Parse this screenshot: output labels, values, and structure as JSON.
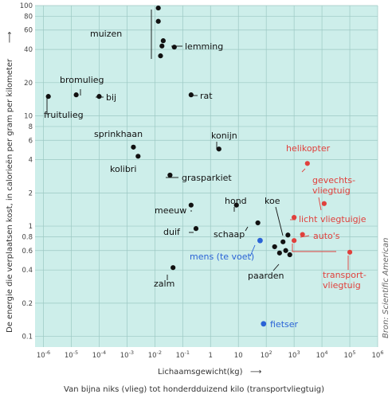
{
  "chart_data": {
    "type": "scatter",
    "x_scale": "log",
    "y_scale": "log",
    "xlim": [
      5e-07,
      1000000.0
    ],
    "ylim": [
      0.08,
      100
    ],
    "grid": true,
    "xlabel": "Lichaamsgewicht(kg)",
    "ylabel": "De energie die verplaatsen kost, in calorieën per gram per kilometer",
    "subtitle": "Van bijna niks (vlieg) tot honderdduizend kilo (transportvliegtuig)",
    "source": "Bron: Scientific American",
    "x_ticks": [
      {
        "v": 1e-06,
        "b": "10",
        "e": "-6"
      },
      {
        "v": 1e-05,
        "b": "10",
        "e": "-5"
      },
      {
        "v": 0.0001,
        "b": "10",
        "e": "-4"
      },
      {
        "v": 0.001,
        "b": "10",
        "e": "-3"
      },
      {
        "v": 0.01,
        "b": "10",
        "e": "-2"
      },
      {
        "v": 0.1,
        "b": "10",
        "e": "-1"
      },
      {
        "v": 1,
        "b": "1",
        "e": ""
      },
      {
        "v": 10,
        "b": "10",
        "e": ""
      },
      {
        "v": 100,
        "b": "10",
        "e": "2"
      },
      {
        "v": 1000,
        "b": "10",
        "e": "3"
      },
      {
        "v": 10000,
        "b": "10",
        "e": "4"
      },
      {
        "v": 100000,
        "b": "10",
        "e": "5"
      },
      {
        "v": 1000000,
        "b": "10",
        "e": "6"
      }
    ],
    "y_ticks": [
      {
        "v": 100,
        "label": "100"
      },
      {
        "v": 80,
        "label": "80"
      },
      {
        "v": 60,
        "label": "60"
      },
      {
        "v": 40,
        "label": "40"
      },
      {
        "v": 20,
        "label": "20"
      },
      {
        "v": 10,
        "label": "10"
      },
      {
        "v": 8,
        "label": "8"
      },
      {
        "v": 6,
        "label": "6"
      },
      {
        "v": 4,
        "label": "4"
      },
      {
        "v": 2,
        "label": "2"
      },
      {
        "v": 1,
        "label": "1"
      },
      {
        "v": 0.8,
        "label": "0.8"
      },
      {
        "v": 0.6,
        "label": "0.6"
      },
      {
        "v": 0.4,
        "label": "0.4"
      },
      {
        "v": 0.2,
        "label": "0.2"
      },
      {
        "v": 0.1,
        "label": "0.1"
      }
    ],
    "colors": {
      "animal": "#111111",
      "vehicle": "#e0403c",
      "human": "#2a63d6",
      "background": "#cdeeea",
      "grid": "#9cc8c3"
    },
    "points": [
      {
        "group": "muizen",
        "x": 0.0133,
        "y": 95,
        "color": "animal"
      },
      {
        "group": "muizen",
        "x": 0.0133,
        "y": 72,
        "color": "animal"
      },
      {
        "group": "muizen",
        "x": 0.02,
        "y": 48,
        "color": "animal"
      },
      {
        "group": "muizen",
        "x": 0.018,
        "y": 43,
        "color": "animal"
      },
      {
        "group": "muizen",
        "x": 0.016,
        "y": 35,
        "color": "animal"
      },
      {
        "group": "lemming",
        "x": 0.05,
        "y": 42,
        "color": "animal"
      },
      {
        "group": "bromulieg",
        "x": 1.5e-05,
        "y": 15.5,
        "color": "animal"
      },
      {
        "group": "bij",
        "x": 0.0001,
        "y": 15,
        "color": "animal"
      },
      {
        "group": "fruitulieg",
        "x": 1.5e-06,
        "y": 15,
        "color": "animal"
      },
      {
        "group": "rat",
        "x": 0.2,
        "y": 15.5,
        "color": "animal"
      },
      {
        "group": "sprinkhaan",
        "x": 0.0017,
        "y": 5.2,
        "color": "animal"
      },
      {
        "group": "kolibri",
        "x": 0.0025,
        "y": 4.3,
        "color": "animal"
      },
      {
        "group": "konijn",
        "x": 2,
        "y": 5,
        "color": "animal"
      },
      {
        "group": "grasparkiet",
        "x": 0.035,
        "y": 2.9,
        "color": "animal"
      },
      {
        "group": "hond",
        "x": 8.5,
        "y": 1.55,
        "color": "animal"
      },
      {
        "group": "meeuw",
        "x": 0.2,
        "y": 1.55,
        "color": "animal"
      },
      {
        "group": "duif",
        "x": 0.3,
        "y": 0.95,
        "color": "animal"
      },
      {
        "group": "schaap",
        "x": 50,
        "y": 1.07,
        "color": "animal"
      },
      {
        "group": "koe",
        "x": 600,
        "y": 0.83,
        "color": "animal"
      },
      {
        "group": "paarden",
        "x": 200,
        "y": 0.65,
        "color": "animal"
      },
      {
        "group": "paarden",
        "x": 400,
        "y": 0.72,
        "color": "animal"
      },
      {
        "group": "paarden",
        "x": 500,
        "y": 0.6,
        "color": "animal"
      },
      {
        "group": "paarden",
        "x": 700,
        "y": 0.55,
        "color": "animal"
      },
      {
        "group": "paarden",
        "x": 300,
        "y": 0.57,
        "color": "animal"
      },
      {
        "group": "zalm",
        "x": 0.045,
        "y": 0.42,
        "color": "animal"
      },
      {
        "group": "mens (te voet)",
        "x": 60,
        "y": 0.74,
        "color": "human"
      },
      {
        "group": "fietser",
        "x": 80,
        "y": 0.13,
        "color": "human"
      },
      {
        "group": "helikopter",
        "x": 3000,
        "y": 3.7,
        "color": "vehicle"
      },
      {
        "group": "gevechtsvliegtuig",
        "x": 12000,
        "y": 1.6,
        "color": "vehicle"
      },
      {
        "group": "licht vliegtuigje",
        "x": 1000,
        "y": 1.2,
        "color": "vehicle"
      },
      {
        "group": "auto's",
        "x": 2000,
        "y": 0.84,
        "color": "vehicle"
      },
      {
        "group": "auto's",
        "x": 1000,
        "y": 0.74,
        "color": "vehicle"
      },
      {
        "group": "transportvliegtuig",
        "x": 100000,
        "y": 0.58,
        "color": "vehicle"
      }
    ],
    "labels": [
      {
        "lines": [
          "muizen"
        ],
        "color": "animal"
      },
      {
        "lines": [
          "lemming"
        ],
        "color": "animal"
      },
      {
        "lines": [
          "bromulieg"
        ],
        "color": "animal"
      },
      {
        "lines": [
          "bij"
        ],
        "color": "animal"
      },
      {
        "lines": [
          "fruitulieg"
        ],
        "color": "animal"
      },
      {
        "lines": [
          "rat"
        ],
        "color": "animal"
      },
      {
        "lines": [
          "sprinkhaan"
        ],
        "color": "animal"
      },
      {
        "lines": [
          "kolibri"
        ],
        "color": "animal"
      },
      {
        "lines": [
          "konijn"
        ],
        "color": "animal"
      },
      {
        "lines": [
          "grasparkiet"
        ],
        "color": "animal"
      },
      {
        "lines": [
          "hond"
        ],
        "color": "animal"
      },
      {
        "lines": [
          "koe"
        ],
        "color": "animal"
      },
      {
        "lines": [
          "meeuw"
        ],
        "color": "animal"
      },
      {
        "lines": [
          "duif"
        ],
        "color": "animal"
      },
      {
        "lines": [
          "schaap"
        ],
        "color": "animal"
      },
      {
        "lines": [
          "mens (te voet)"
        ],
        "color": "human"
      },
      {
        "lines": [
          "paarden"
        ],
        "color": "animal"
      },
      {
        "lines": [
          "zalm"
        ],
        "color": "animal"
      },
      {
        "lines": [
          "fietser"
        ],
        "color": "human"
      },
      {
        "lines": [
          "helikopter"
        ],
        "color": "vehicle"
      },
      {
        "lines": [
          "gevechts-",
          "vliegtuig"
        ],
        "color": "vehicle"
      },
      {
        "lines": [
          "licht vliegtuigje"
        ],
        "color": "vehicle"
      },
      {
        "lines": [
          "auto's"
        ],
        "color": "vehicle"
      },
      {
        "lines": [
          "transport-",
          "vliegtuig"
        ],
        "color": "vehicle"
      }
    ]
  }
}
